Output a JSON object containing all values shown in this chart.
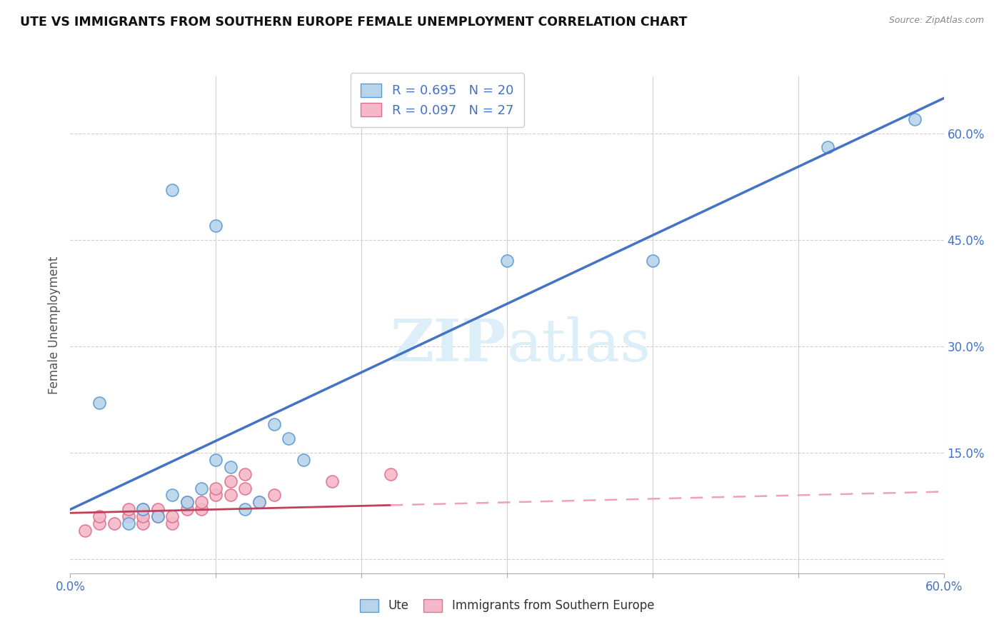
{
  "title": "UTE VS IMMIGRANTS FROM SOUTHERN EUROPE FEMALE UNEMPLOYMENT CORRELATION CHART",
  "source": "Source: ZipAtlas.com",
  "ylabel": "Female Unemployment",
  "xlim": [
    0.0,
    0.6
  ],
  "ylim": [
    -0.02,
    0.68
  ],
  "legend_R1": "R = 0.695",
  "legend_N1": "N = 20",
  "legend_R2": "R = 0.097",
  "legend_N2": "N = 27",
  "color_ute_fill": "#b8d4ea",
  "color_ute_edge": "#5b9bd5",
  "color_imm_fill": "#f4b8c8",
  "color_imm_edge": "#e07090",
  "color_ute_line": "#4472c4",
  "color_imm_line_solid": "#c0405a",
  "color_imm_line_dashed": "#f0a0b8",
  "watermark_color": "#dceef8",
  "background_color": "#ffffff",
  "grid_color": "#d0d0d0",
  "ute_x": [
    0.02,
    0.07,
    0.1,
    0.3,
    0.04,
    0.05,
    0.06,
    0.07,
    0.08,
    0.09,
    0.1,
    0.11,
    0.12,
    0.13,
    0.14,
    0.15,
    0.16,
    0.4,
    0.52,
    0.58
  ],
  "ute_y": [
    0.22,
    0.52,
    0.47,
    0.42,
    0.05,
    0.07,
    0.06,
    0.09,
    0.08,
    0.1,
    0.14,
    0.13,
    0.07,
    0.08,
    0.19,
    0.17,
    0.14,
    0.42,
    0.58,
    0.62
  ],
  "imm_x": [
    0.01,
    0.02,
    0.02,
    0.03,
    0.04,
    0.04,
    0.05,
    0.05,
    0.05,
    0.06,
    0.06,
    0.07,
    0.07,
    0.08,
    0.08,
    0.09,
    0.09,
    0.1,
    0.1,
    0.11,
    0.11,
    0.12,
    0.12,
    0.13,
    0.14,
    0.18,
    0.22
  ],
  "imm_y": [
    0.04,
    0.05,
    0.06,
    0.05,
    0.06,
    0.07,
    0.05,
    0.06,
    0.07,
    0.06,
    0.07,
    0.05,
    0.06,
    0.07,
    0.08,
    0.07,
    0.08,
    0.09,
    0.1,
    0.09,
    0.11,
    0.1,
    0.12,
    0.08,
    0.09,
    0.11,
    0.12
  ]
}
